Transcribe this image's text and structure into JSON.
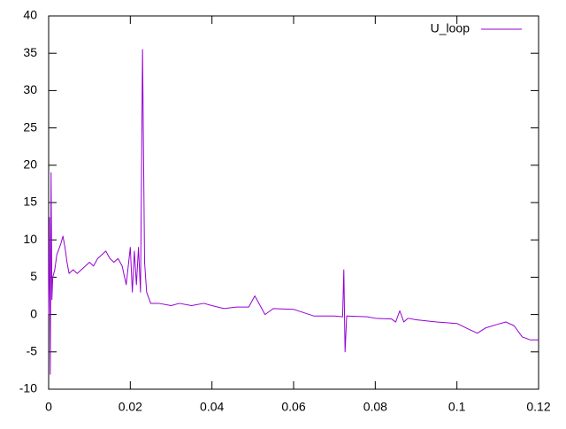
{
  "chart_data": {
    "type": "line",
    "x": [
      0,
      0.0002,
      0.0004,
      0.0006,
      0.0008,
      0.001,
      0.0015,
      0.002,
      0.003,
      0.0035,
      0.004,
      0.0045,
      0.005,
      0.006,
      0.007,
      0.008,
      0.009,
      0.01,
      0.011,
      0.012,
      0.013,
      0.014,
      0.015,
      0.016,
      0.017,
      0.018,
      0.019,
      0.02,
      0.0205,
      0.021,
      0.0215,
      0.022,
      0.0225,
      0.023,
      0.0235,
      0.024,
      0.025,
      0.027,
      0.03,
      0.032,
      0.035,
      0.038,
      0.04,
      0.043,
      0.046,
      0.049,
      0.0505,
      0.052,
      0.053,
      0.055,
      0.06,
      0.065,
      0.07,
      0.072,
      0.0723,
      0.0726,
      0.073,
      0.078,
      0.08,
      0.084,
      0.085,
      0.086,
      0.087,
      0.088,
      0.09,
      0.095,
      0.1,
      0.103,
      0.105,
      0.107,
      0.11,
      0.112,
      0.114,
      0.116,
      0.118,
      0.12
    ],
    "series": [
      {
        "name": "U_loop",
        "color": "#9400d3",
        "values": [
          0,
          13,
          -8,
          19,
          2,
          5,
          6,
          8,
          9.5,
          10.5,
          9,
          7,
          5.5,
          6,
          5.5,
          6,
          6.5,
          7,
          6.5,
          7.5,
          8,
          8.5,
          7.5,
          7,
          7.5,
          6.5,
          4,
          9,
          3,
          8.5,
          4,
          9,
          3,
          35.5,
          7,
          3,
          1.5,
          1.5,
          1.2,
          1.5,
          1.2,
          1.5,
          1.2,
          0.8,
          1,
          1,
          2.5,
          1,
          0,
          0.8,
          0.7,
          -0.2,
          -0.2,
          -0.3,
          6,
          -5,
          -0.2,
          -0.3,
          -0.5,
          -0.6,
          -1,
          0.5,
          -1,
          -0.5,
          -0.7,
          -1,
          -1.2,
          -2,
          -2.5,
          -1.8,
          -1.3,
          -1,
          -1.5,
          -3,
          -3.4,
          -3.4
        ]
      }
    ],
    "xlim": [
      0,
      0.12
    ],
    "xticks": [
      0,
      0.02,
      0.04,
      0.06,
      0.08,
      0.1,
      0.12
    ],
    "ylim": [
      -10,
      40
    ],
    "yticks": [
      -10,
      -5,
      0,
      5,
      10,
      15,
      20,
      25,
      30,
      35,
      40
    ],
    "legend": "top-right"
  }
}
